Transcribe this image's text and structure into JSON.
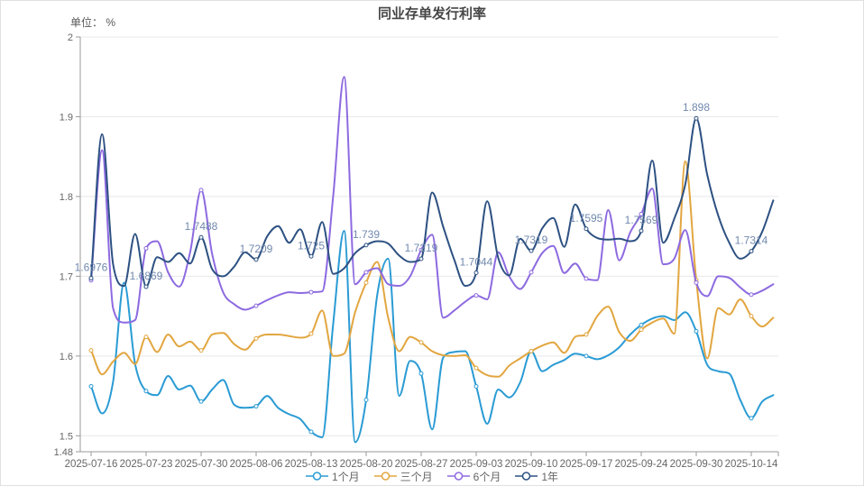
{
  "title": "同业存单发行利率",
  "unit_label": "单位： %",
  "colors": {
    "point_label": "#7189ae",
    "axis_line": "#999999",
    "grid_line": "#e8e8e8",
    "tick_text": "#666666",
    "title_text": "#464646",
    "border": "#e0e0e0",
    "background": "#ffffff"
  },
  "legend": {
    "items": [
      {
        "key": "1m",
        "label": "1个月"
      },
      {
        "key": "3m",
        "label": "三个月"
      },
      {
        "key": "6m",
        "label": "6个月"
      },
      {
        "key": "1y",
        "label": "1年"
      }
    ]
  },
  "chart_data": {
    "type": "line",
    "title": "同业存单发行利率",
    "unit": "%",
    "smooth": true,
    "grid": true,
    "legend_position": "bottom",
    "ylim": [
      1.48,
      2
    ],
    "y_tick_values": [
      1.48,
      1.5,
      1.6,
      1.7,
      1.8,
      1.9,
      2
    ],
    "y_tick_labels": [
      "1.48",
      "1.5",
      "1.6",
      "1.7",
      "1.8",
      "1.9",
      "2"
    ],
    "x_tick_labels": [
      "2025-07-16",
      "2025-07-23",
      "2025-07-30",
      "2025-08-06",
      "2025-08-13",
      "2025-08-20",
      "2025-08-27",
      "2025-09-03",
      "2025-09-10",
      "2025-09-17",
      "2025-09-24",
      "2025-09-30",
      "2025-10-14"
    ],
    "points_per_week": 5,
    "marker_indices": [
      0,
      5,
      10,
      15,
      20,
      25,
      30,
      35,
      40,
      45,
      50,
      55,
      60
    ],
    "series": [
      {
        "key": "1m",
        "name": "1个月",
        "color": "#2a9bd4",
        "values": [
          1.562,
          1.528,
          1.568,
          1.692,
          1.59,
          1.556,
          1.551,
          1.575,
          1.558,
          1.563,
          1.543,
          1.558,
          1.57,
          1.539,
          1.535,
          1.537,
          1.55,
          1.535,
          1.527,
          1.521,
          1.505,
          1.498,
          1.64,
          1.757,
          1.492,
          1.545,
          1.676,
          1.722,
          1.55,
          1.594,
          1.578,
          1.508,
          1.598,
          1.605,
          1.606,
          1.562,
          1.515,
          1.558,
          1.548,
          1.567,
          1.606,
          1.581,
          1.589,
          1.595,
          1.603,
          1.6,
          1.596,
          1.601,
          1.611,
          1.627,
          1.639,
          1.647,
          1.65,
          1.645,
          1.655,
          1.631,
          1.589,
          1.581,
          1.578,
          1.545,
          1.522,
          1.543,
          1.551
        ]
      },
      {
        "key": "3m",
        "name": "三个月",
        "color": "#e2a640",
        "values": [
          1.607,
          1.577,
          1.593,
          1.604,
          1.59,
          1.624,
          1.605,
          1.627,
          1.612,
          1.618,
          1.607,
          1.627,
          1.629,
          1.615,
          1.608,
          1.622,
          1.627,
          1.627,
          1.625,
          1.623,
          1.628,
          1.657,
          1.6,
          1.603,
          1.655,
          1.692,
          1.718,
          1.648,
          1.606,
          1.624,
          1.617,
          1.606,
          1.601,
          1.6,
          1.601,
          1.585,
          1.576,
          1.574,
          1.588,
          1.597,
          1.606,
          1.613,
          1.617,
          1.604,
          1.624,
          1.627,
          1.65,
          1.662,
          1.63,
          1.619,
          1.633,
          1.642,
          1.647,
          1.628,
          1.844,
          1.695,
          1.597,
          1.66,
          1.652,
          1.671,
          1.65,
          1.637,
          1.648
        ]
      },
      {
        "key": "6m",
        "name": "6个月",
        "color": "#8d6ae0",
        "values": [
          1.695,
          1.858,
          1.66,
          1.642,
          1.645,
          1.735,
          1.744,
          1.705,
          1.687,
          1.73,
          1.808,
          1.728,
          1.68,
          1.665,
          1.658,
          1.663,
          1.67,
          1.676,
          1.68,
          1.679,
          1.68,
          1.681,
          1.8,
          1.95,
          1.69,
          1.705,
          1.71,
          1.69,
          1.688,
          1.7,
          1.733,
          1.752,
          1.648,
          1.657,
          1.668,
          1.676,
          1.671,
          1.73,
          1.7,
          1.684,
          1.705,
          1.729,
          1.738,
          1.704,
          1.716,
          1.697,
          1.695,
          1.783,
          1.72,
          1.755,
          1.778,
          1.81,
          1.715,
          1.722,
          1.758,
          1.692,
          1.675,
          1.7,
          1.698,
          1.686,
          1.677,
          1.682,
          1.69
        ]
      },
      {
        "key": "1y",
        "name": "1年",
        "color": "#2d5182",
        "values": [
          1.6976,
          1.878,
          1.715,
          1.688,
          1.753,
          1.6869,
          1.724,
          1.718,
          1.729,
          1.716,
          1.7488,
          1.709,
          1.7,
          1.712,
          1.73,
          1.7209,
          1.75,
          1.763,
          1.742,
          1.759,
          1.725,
          1.768,
          1.703,
          1.71,
          1.729,
          1.739,
          1.744,
          1.741,
          1.726,
          1.718,
          1.7219,
          1.805,
          1.762,
          1.721,
          1.688,
          1.7044,
          1.794,
          1.723,
          1.701,
          1.747,
          1.7319,
          1.76,
          1.773,
          1.737,
          1.79,
          1.7595,
          1.748,
          1.746,
          1.747,
          1.744,
          1.7569,
          1.845,
          1.742,
          1.772,
          1.815,
          1.898,
          1.827,
          1.776,
          1.742,
          1.722,
          1.7314,
          1.756,
          1.795
        ],
        "point_labels": [
          {
            "i": 0,
            "text": "1.6976"
          },
          {
            "i": 5,
            "text": "1.6869"
          },
          {
            "i": 10,
            "text": "1.7488"
          },
          {
            "i": 15,
            "text": "1.7209"
          },
          {
            "i": 20,
            "text": "1.725"
          },
          {
            "i": 25,
            "text": "1.739"
          },
          {
            "i": 30,
            "text": "1.7219"
          },
          {
            "i": 35,
            "text": "1.7044"
          },
          {
            "i": 40,
            "text": "1.7319"
          },
          {
            "i": 45,
            "text": "1.7595"
          },
          {
            "i": 50,
            "text": "1.7569"
          },
          {
            "i": 55,
            "text": "1.898"
          },
          {
            "i": 60,
            "text": "1.7314"
          }
        ]
      }
    ]
  }
}
